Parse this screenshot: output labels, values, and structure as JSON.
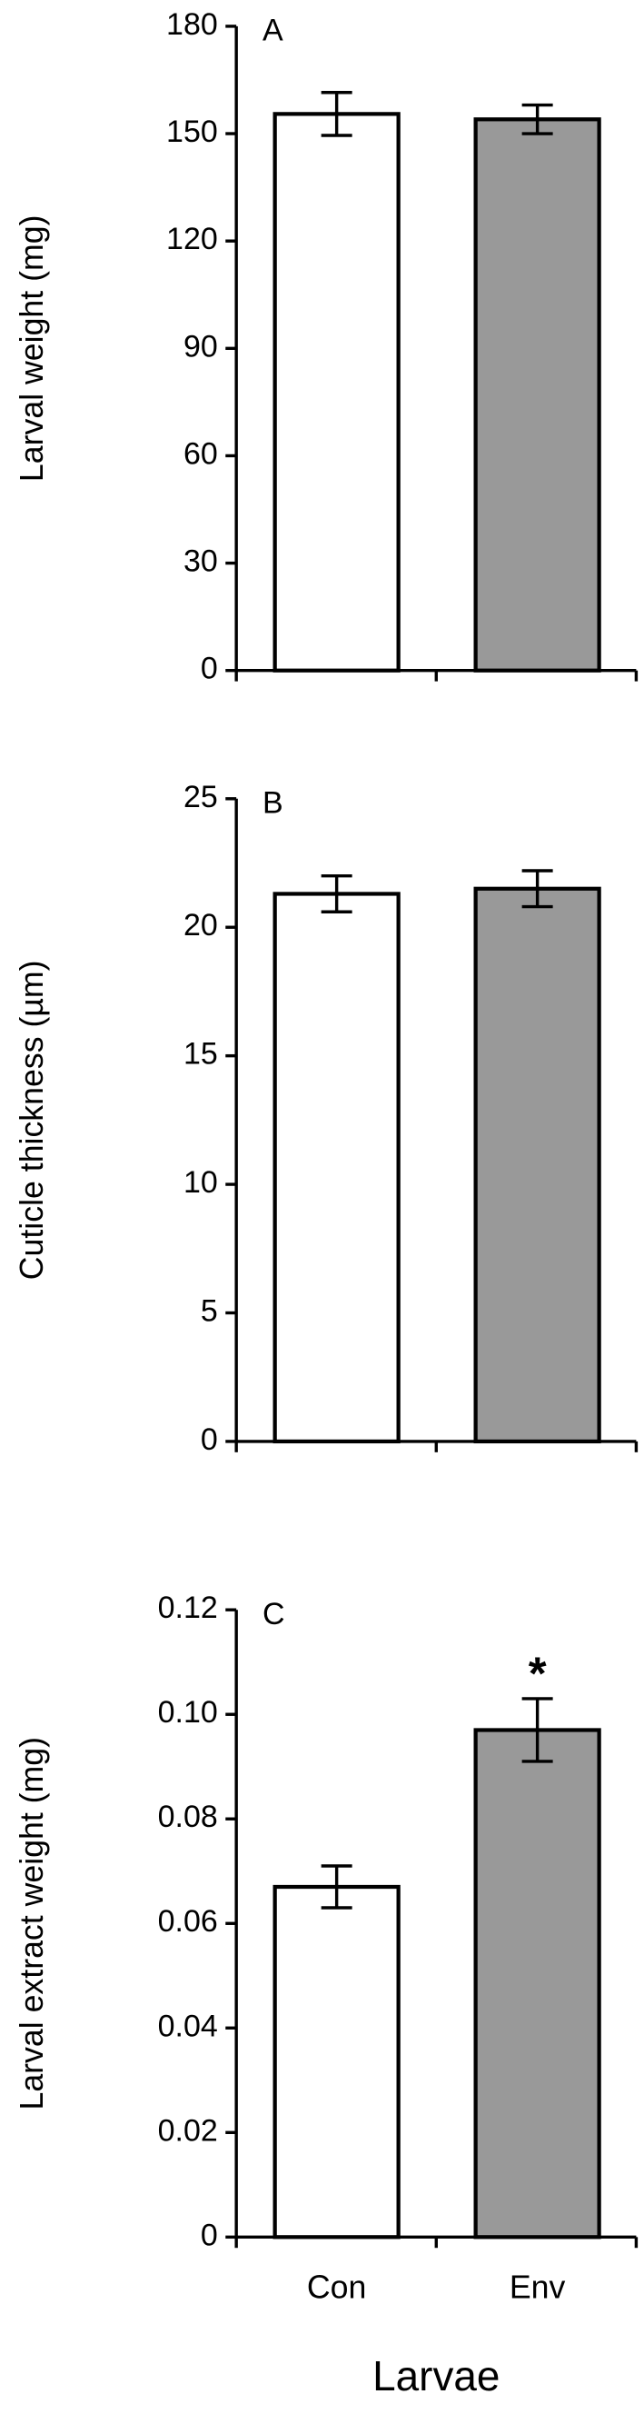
{
  "chart_data": [
    {
      "type": "bar",
      "panel": "A",
      "y_label": "Larval weight (mg)",
      "values": [
        155.5,
        154
      ],
      "errors": [
        6,
        4
      ],
      "colors": [
        "#ffffff",
        "#999999"
      ],
      "ylim": [
        0,
        180
      ],
      "yticks": [
        0,
        30,
        60,
        90,
        120,
        150,
        180
      ]
    },
    {
      "type": "bar",
      "panel": "B",
      "y_label": "Cuticle thickness (µm)",
      "values": [
        21.3,
        21.5
      ],
      "errors": [
        0.7,
        0.7
      ],
      "colors": [
        "#ffffff",
        "#999999"
      ],
      "ylim": [
        0,
        25
      ],
      "yticks": [
        0,
        5,
        10,
        15,
        20,
        25
      ]
    },
    {
      "type": "bar",
      "panel": "C",
      "y_label": "Larval extract weight (mg)",
      "x_label": "Larvae",
      "categories": [
        "Con",
        "Env"
      ],
      "annotation": "*",
      "values": [
        0.067,
        0.097
      ],
      "errors": [
        0.004,
        0.006
      ],
      "colors": [
        "#ffffff",
        "#999999"
      ],
      "ylim": [
        0,
        0.12
      ],
      "yticks": [
        0,
        0.02,
        0.04,
        0.06,
        0.08,
        {
          "value": 0.1,
          "label": "0.10"
        },
        0.12
      ]
    }
  ]
}
